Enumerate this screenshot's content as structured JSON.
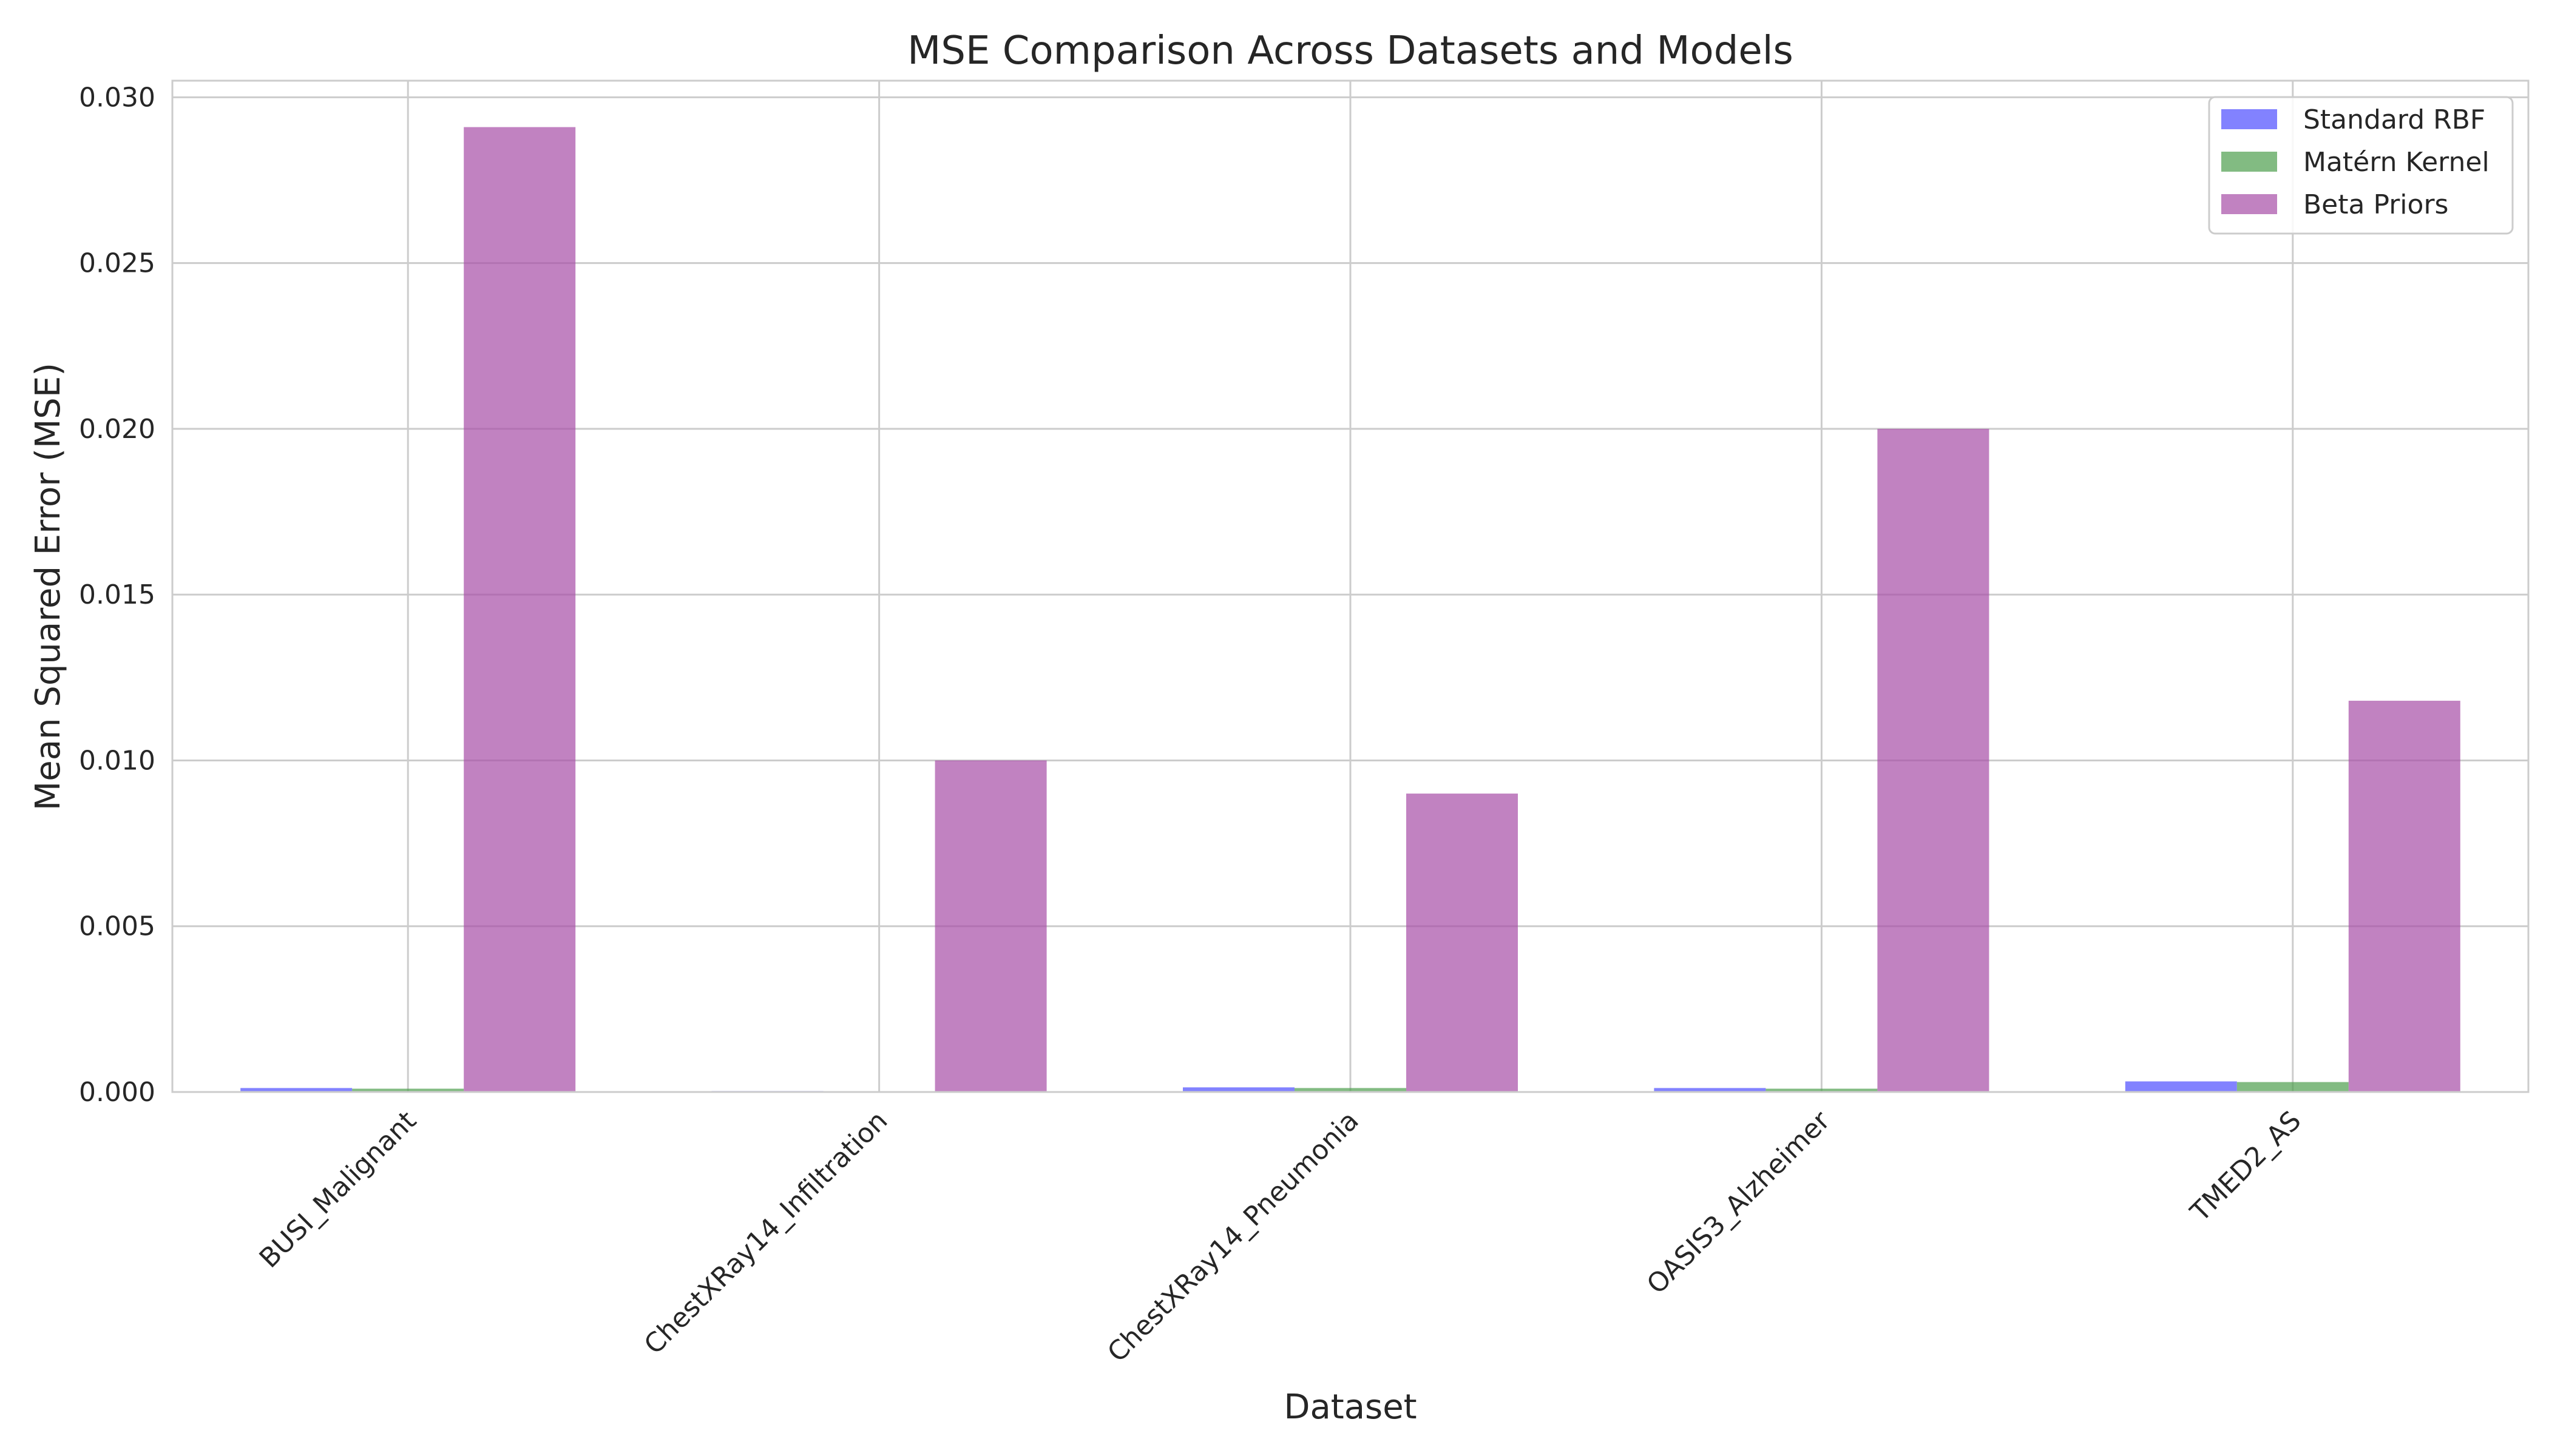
{
  "chart_data": {
    "type": "bar",
    "title": "MSE Comparison Across Datasets and Models",
    "xlabel": "Dataset",
    "ylabel": "Mean Squared Error (MSE)",
    "categories": [
      "BUSI_Malignant",
      "ChestXRay14_Infiltration",
      "ChestXRay14_Pneumonia",
      "OASIS3_Alzheimer",
      "TMED2_AS"
    ],
    "series": [
      {
        "name": "Standard RBF",
        "color": "#4d4dff",
        "values": [
          0.00012,
          3e-05,
          0.00014,
          0.00012,
          0.00032
        ]
      },
      {
        "name": "Matérn Kernel",
        "color": "#4d9e4d",
        "values": [
          0.0001,
          2e-05,
          0.00012,
          0.0001,
          0.0003
        ]
      },
      {
        "name": "Beta Priors",
        "color": "#a64da6",
        "values": [
          0.0291,
          0.01,
          0.009,
          0.02,
          0.0118
        ]
      }
    ],
    "ylim": [
      0,
      0.0305
    ],
    "yticks": [
      "0.000",
      "0.005",
      "0.010",
      "0.015",
      "0.020",
      "0.025",
      "0.030"
    ],
    "grid": true,
    "legend": "top-right"
  }
}
